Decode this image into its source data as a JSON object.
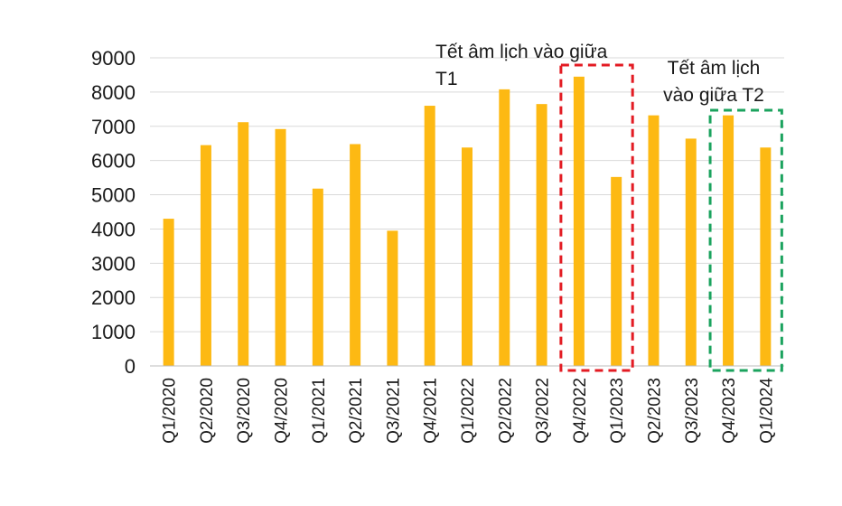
{
  "chart_data": {
    "type": "bar",
    "categories": [
      "Q1/2020",
      "Q2/2020",
      "Q3/2020",
      "Q4/2020",
      "Q1/2021",
      "Q2/2021",
      "Q3/2021",
      "Q4/2021",
      "Q1/2022",
      "Q2/2022",
      "Q3/2022",
      "Q4/2022",
      "Q1/2023",
      "Q2/2023",
      "Q3/2023",
      "Q4/2023",
      "Q1/2024"
    ],
    "values": [
      4300,
      6450,
      7120,
      6920,
      5180,
      6480,
      3950,
      7600,
      6380,
      8080,
      7650,
      8450,
      5520,
      7320,
      6640,
      7320,
      6380
    ],
    "ylim": [
      0,
      9000
    ],
    "yticks": [
      0,
      1000,
      2000,
      3000,
      4000,
      5000,
      6000,
      7000,
      8000,
      9000
    ],
    "grid": true,
    "bar_color": "#FDB913",
    "annotations": [
      {
        "lines": [
          "Tết âm lịch vào giữa",
          "T1"
        ],
        "highlight": [
          "Q4/2022",
          "Q1/2023"
        ],
        "color": "#E31B23"
      },
      {
        "lines": [
          "Tết âm lịch",
          "vào giữa T2"
        ],
        "highlight": [
          "Q4/2023",
          "Q1/2024"
        ],
        "color": "#1BA35E"
      }
    ]
  }
}
